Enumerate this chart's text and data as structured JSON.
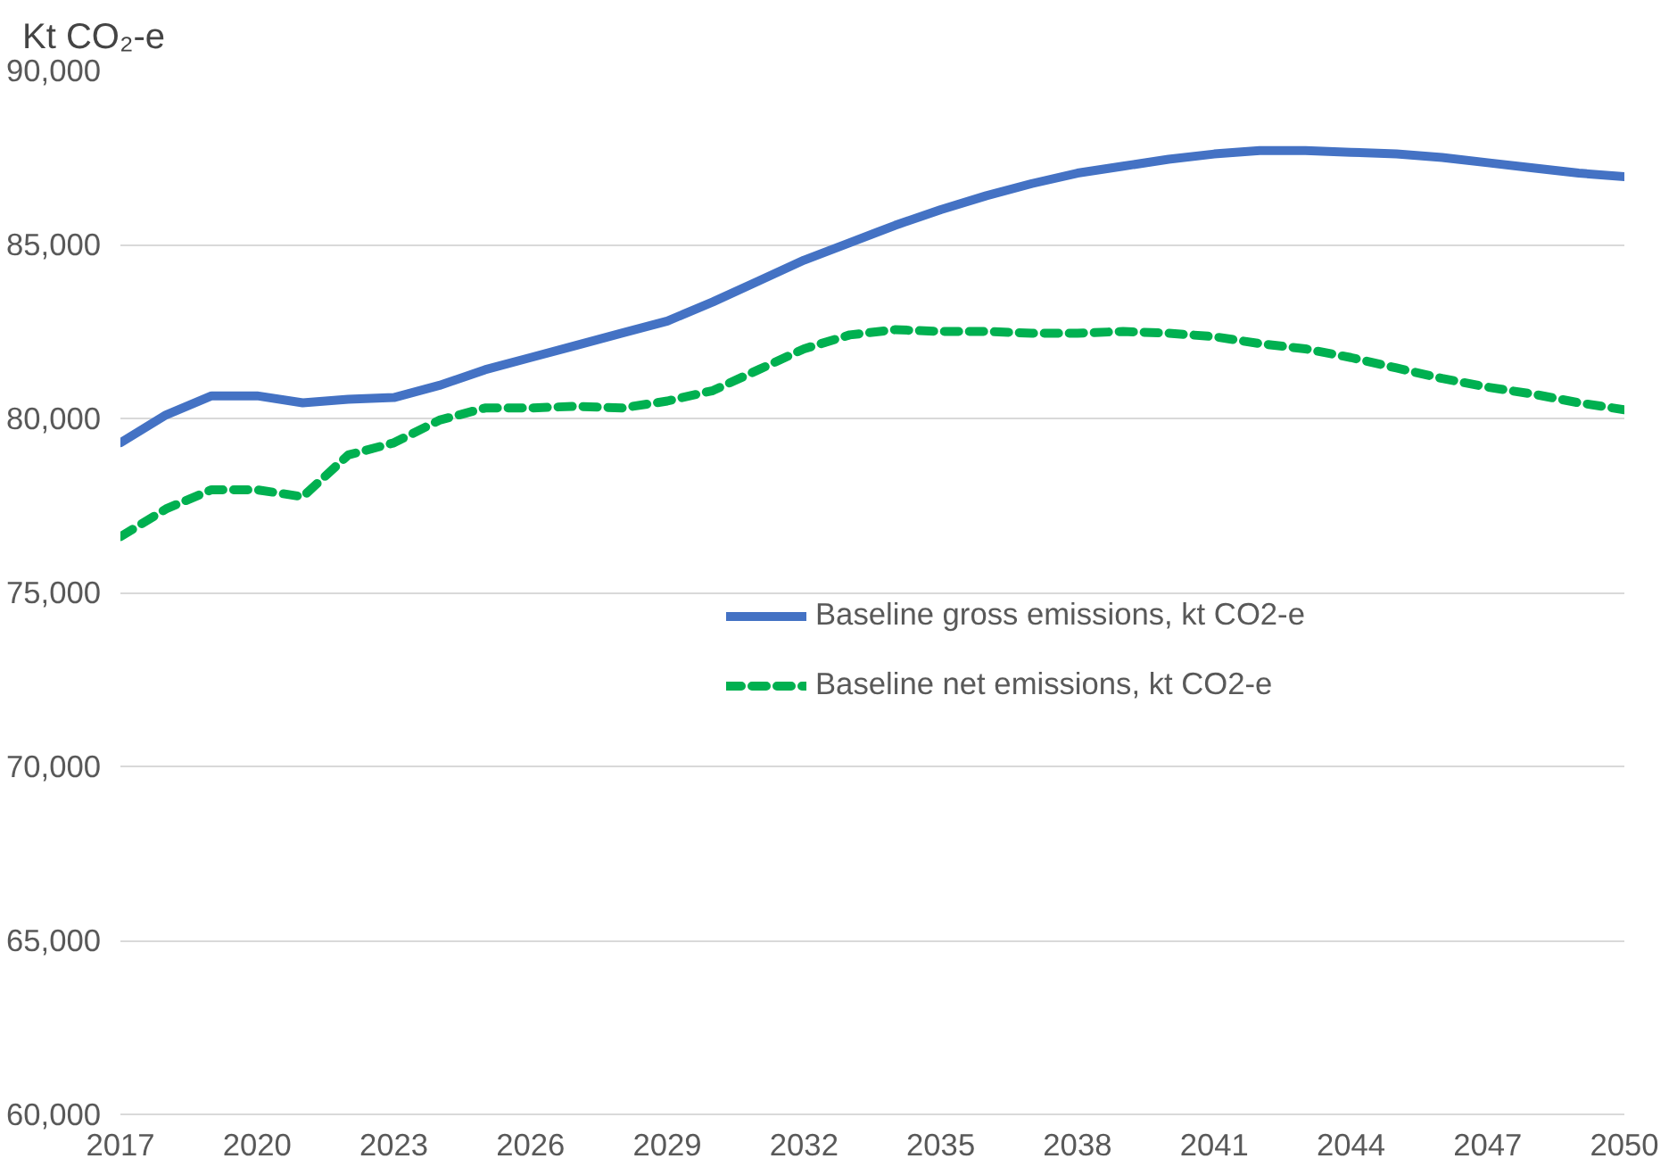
{
  "chart_data": {
    "type": "line",
    "ylabel": "Kt CO₂-e",
    "x": [
      2017,
      2018,
      2019,
      2020,
      2021,
      2022,
      2023,
      2024,
      2025,
      2026,
      2027,
      2028,
      2029,
      2030,
      2031,
      2032,
      2033,
      2034,
      2035,
      2036,
      2037,
      2038,
      2039,
      2040,
      2041,
      2042,
      2043,
      2044,
      2045,
      2046,
      2047,
      2048,
      2049,
      2050
    ],
    "series": [
      {
        "name": "Baseline gross emissions, kt CO2-e",
        "color": "#4472c4",
        "line_style": "solid",
        "values": [
          79300,
          80100,
          80650,
          80650,
          80450,
          80550,
          80600,
          80950,
          81400,
          81750,
          82100,
          82450,
          82800,
          83350,
          83950,
          84550,
          85050,
          85550,
          86000,
          86400,
          86750,
          87050,
          87250,
          87450,
          87600,
          87700,
          87700,
          87650,
          87600,
          87500,
          87350,
          87200,
          87050,
          86950
        ]
      },
      {
        "name": "Baseline net emissions, kt CO2-e",
        "color": "#00b050",
        "line_style": "dashed",
        "values": [
          76600,
          77400,
          77950,
          77950,
          77750,
          78950,
          79300,
          79950,
          80300,
          80300,
          80350,
          80300,
          80500,
          80800,
          81400,
          82000,
          82400,
          82550,
          82500,
          82500,
          82450,
          82450,
          82500,
          82450,
          82350,
          82150,
          82000,
          81750,
          81450,
          81150,
          80900,
          80700,
          80450,
          80250
        ]
      }
    ],
    "xlim": [
      2017,
      2050
    ],
    "xticks": [
      2017,
      2020,
      2023,
      2026,
      2029,
      2032,
      2035,
      2038,
      2041,
      2044,
      2047,
      2050
    ],
    "ylim": [
      60000,
      90000
    ],
    "yticks": [
      {
        "value": 60000,
        "label": "60,000"
      },
      {
        "value": 65000,
        "label": "65,000"
      },
      {
        "value": 70000,
        "label": "70,000"
      },
      {
        "value": 75000,
        "label": "75,000"
      },
      {
        "value": 80000,
        "label": "80,000"
      },
      {
        "value": 85000,
        "label": "85,000"
      },
      {
        "value": 90000,
        "label": "90,000"
      }
    ],
    "grid": "y",
    "legend": "right",
    "marker": "none"
  }
}
